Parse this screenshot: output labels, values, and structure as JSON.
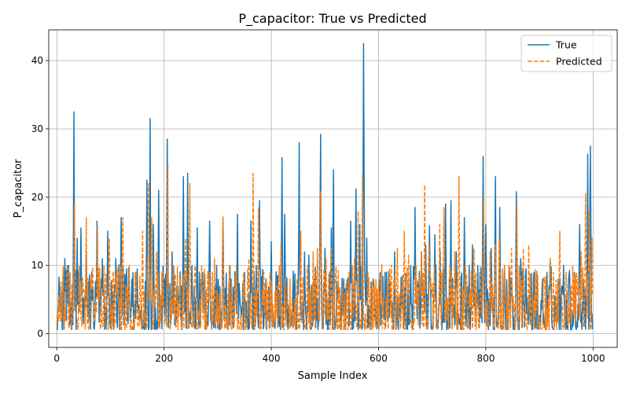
{
  "chart_data": {
    "type": "line",
    "title": "P_capacitor: True vs Predicted",
    "xlabel": "Sample Index",
    "ylabel": "P_capacitor",
    "xlim": [
      -15,
      1045
    ],
    "ylim": [
      -2,
      44.5
    ],
    "xticks": [
      0,
      200,
      400,
      600,
      800,
      1000
    ],
    "yticks": [
      0,
      10,
      20,
      30,
      40
    ],
    "grid": true,
    "legend_position": "top-right",
    "n_samples": 1000,
    "series": [
      {
        "name": "True",
        "color": "#1f77b4",
        "style": "solid",
        "peaks": [
          [
            5,
            7
          ],
          [
            15,
            11
          ],
          [
            22,
            10
          ],
          [
            32,
            32.5
          ],
          [
            38,
            14
          ],
          [
            45,
            15.5
          ],
          [
            55,
            12
          ],
          [
            65,
            9
          ],
          [
            75,
            16.5
          ],
          [
            85,
            11
          ],
          [
            95,
            15
          ],
          [
            110,
            11
          ],
          [
            120,
            17
          ],
          [
            130,
            9.5
          ],
          [
            140,
            8
          ],
          [
            150,
            9.5
          ],
          [
            168,
            22.5
          ],
          [
            174,
            31.5
          ],
          [
            180,
            16
          ],
          [
            190,
            21
          ],
          [
            200,
            8
          ],
          [
            206,
            28.5
          ],
          [
            215,
            12
          ],
          [
            225,
            7
          ],
          [
            236,
            23
          ],
          [
            244,
            23.5
          ],
          [
            252,
            10
          ],
          [
            262,
            15.5
          ],
          [
            272,
            9
          ],
          [
            285,
            16.5
          ],
          [
            298,
            10
          ],
          [
            310,
            17
          ],
          [
            325,
            8
          ],
          [
            337,
            17.5
          ],
          [
            350,
            9
          ],
          [
            362,
            16.5
          ],
          [
            372,
            10
          ],
          [
            378,
            19.5
          ],
          [
            388,
            6
          ],
          [
            400,
            13.5
          ],
          [
            410,
            8
          ],
          [
            420,
            25.8
          ],
          [
            425,
            17.5
          ],
          [
            440,
            6
          ],
          [
            452,
            28
          ],
          [
            462,
            12
          ],
          [
            470,
            11.5
          ],
          [
            480,
            8
          ],
          [
            492,
            29.2
          ],
          [
            500,
            12.5
          ],
          [
            512,
            15.5
          ],
          [
            516,
            24
          ],
          [
            525,
            7
          ],
          [
            535,
            8
          ],
          [
            548,
            16.5
          ],
          [
            558,
            21.2
          ],
          [
            565,
            16
          ],
          [
            572,
            42.5
          ],
          [
            578,
            14
          ],
          [
            590,
            8
          ],
          [
            600,
            7
          ],
          [
            615,
            9
          ],
          [
            630,
            12
          ],
          [
            645,
            8.5
          ],
          [
            660,
            10
          ],
          [
            668,
            18.5
          ],
          [
            680,
            12
          ],
          [
            688,
            13
          ],
          [
            695,
            15.8
          ],
          [
            705,
            14.5
          ],
          [
            715,
            12
          ],
          [
            725,
            19
          ],
          [
            735,
            19.5
          ],
          [
            745,
            12
          ],
          [
            760,
            17
          ],
          [
            775,
            13
          ],
          [
            785,
            10
          ],
          [
            795,
            26
          ],
          [
            800,
            16
          ],
          [
            810,
            12.5
          ],
          [
            818,
            23
          ],
          [
            826,
            18.5
          ],
          [
            835,
            10
          ],
          [
            845,
            7
          ],
          [
            857,
            20.8
          ],
          [
            865,
            11
          ],
          [
            875,
            9.5
          ],
          [
            890,
            9
          ],
          [
            905,
            7
          ],
          [
            920,
            11
          ],
          [
            935,
            8
          ],
          [
            945,
            10
          ],
          [
            955,
            8.5
          ],
          [
            965,
            9
          ],
          [
            975,
            16
          ],
          [
            982,
            8
          ],
          [
            990,
            26.3
          ],
          [
            995,
            27.5
          ]
        ]
      },
      {
        "name": "Predicted",
        "color": "#ff7f0e",
        "style": "dashed",
        "peaks": [
          [
            5,
            4
          ],
          [
            18,
            8
          ],
          [
            25,
            9
          ],
          [
            33,
            19
          ],
          [
            42,
            10
          ],
          [
            55,
            17
          ],
          [
            66,
            9
          ],
          [
            76,
            15.8
          ],
          [
            88,
            10
          ],
          [
            98,
            14
          ],
          [
            112,
            9
          ],
          [
            123,
            17
          ],
          [
            135,
            10
          ],
          [
            148,
            9
          ],
          [
            160,
            15
          ],
          [
            171,
            22
          ],
          [
            177,
            17
          ],
          [
            186,
            12
          ],
          [
            198,
            9
          ],
          [
            207,
            24.8
          ],
          [
            217,
            10
          ],
          [
            230,
            8
          ],
          [
            240,
            14
          ],
          [
            248,
            22
          ],
          [
            258,
            10
          ],
          [
            270,
            10
          ],
          [
            282,
            9
          ],
          [
            294,
            11
          ],
          [
            310,
            17.2
          ],
          [
            322,
            10
          ],
          [
            335,
            10
          ],
          [
            348,
            9
          ],
          [
            358,
            11
          ],
          [
            366,
            23.5
          ],
          [
            376,
            18.5
          ],
          [
            386,
            9
          ],
          [
            398,
            9
          ],
          [
            410,
            7
          ],
          [
            418,
            13
          ],
          [
            430,
            7
          ],
          [
            448,
            8
          ],
          [
            455,
            15
          ],
          [
            468,
            10
          ],
          [
            478,
            12
          ],
          [
            486,
            12.5
          ],
          [
            492,
            20.8
          ],
          [
            502,
            11
          ],
          [
            512,
            12.5
          ],
          [
            520,
            9
          ],
          [
            533,
            7
          ],
          [
            545,
            9
          ],
          [
            555,
            11
          ],
          [
            562,
            18
          ],
          [
            570,
            23.5
          ],
          [
            580,
            9
          ],
          [
            592,
            7
          ],
          [
            605,
            8
          ],
          [
            620,
            9
          ],
          [
            635,
            12.5
          ],
          [
            648,
            15
          ],
          [
            656,
            11.5
          ],
          [
            670,
            10
          ],
          [
            680,
            12
          ],
          [
            686,
            21.8
          ],
          [
            694,
            13
          ],
          [
            704,
            10
          ],
          [
            714,
            16
          ],
          [
            722,
            18.5
          ],
          [
            733,
            10
          ],
          [
            742,
            12
          ],
          [
            750,
            23
          ],
          [
            762,
            10
          ],
          [
            778,
            12.5
          ],
          [
            790,
            10
          ],
          [
            796,
            20
          ],
          [
            808,
            12
          ],
          [
            818,
            13
          ],
          [
            825,
            14
          ],
          [
            835,
            10
          ],
          [
            848,
            12.5
          ],
          [
            858,
            18.8
          ],
          [
            870,
            12.5
          ],
          [
            880,
            13
          ],
          [
            895,
            9
          ],
          [
            908,
            8
          ],
          [
            920,
            11
          ],
          [
            938,
            15
          ],
          [
            950,
            9
          ],
          [
            962,
            10
          ],
          [
            972,
            8
          ],
          [
            978,
            12
          ],
          [
            986,
            20.5
          ],
          [
            993,
            18
          ],
          [
            998,
            14
          ]
        ]
      }
    ]
  }
}
